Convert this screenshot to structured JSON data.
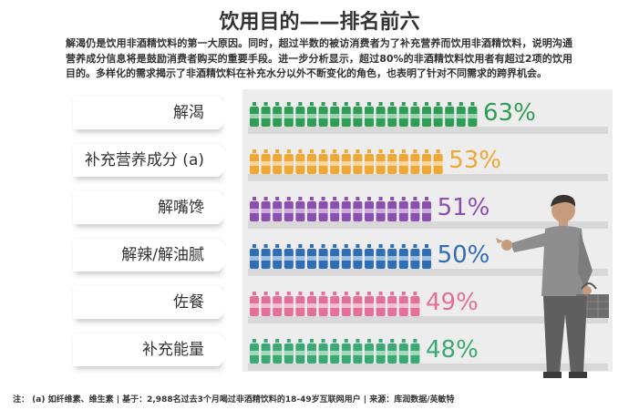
{
  "title": "饮用目的——排名前六",
  "intro": "解渴仍是饮用非酒精饮料的第一大原因。同时，超过半数的被访消费者为了补充营养而饮用非酒精饮料，说明沟通营养成分信息将是鼓励消费者购买的重要手段。进一步分析显示，超过80%的非酒精饮料饮用者有超过2项的饮用目的。多样化的需求揭示了非酒精饮料在补充水分以外不断变化的角色，也表明了针对不同需求的跨界机会。",
  "footer": "注： (a) 如纤维素、维生素 | 基于：2,988名过去3个月喝过非酒精饮料的18-49岁互联网用户 | 来源：库润数据/英敏特",
  "chart_data": {
    "type": "bar",
    "categories": [
      "解渴",
      "补充营养成分 (a)",
      "解嘴馋",
      "解辣/解油腻",
      "佐餐",
      "补充能量"
    ],
    "values": [
      63,
      53,
      51,
      50,
      49,
      48
    ],
    "value_labels": [
      "63%",
      "53%",
      "51%",
      "50%",
      "49%",
      "48%"
    ],
    "colors": [
      "#2e9e57",
      "#f0a733",
      "#8a4fb0",
      "#2f6db5",
      "#e4709a",
      "#3aa974"
    ],
    "unit": "%",
    "xlim": [
      0,
      100
    ]
  }
}
